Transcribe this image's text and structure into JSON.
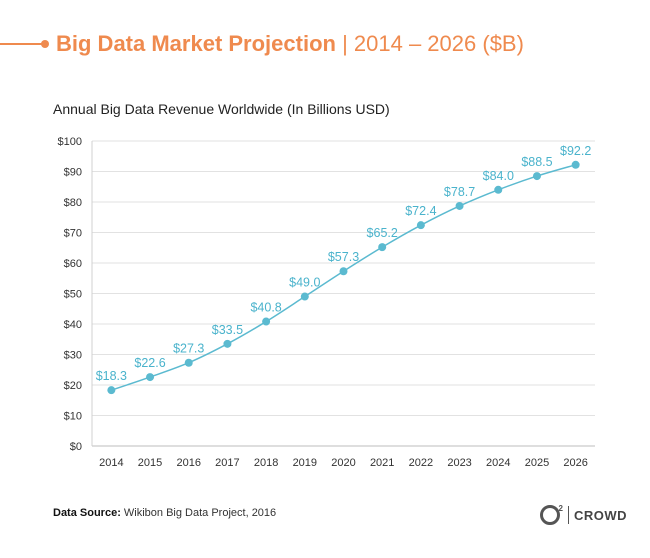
{
  "header": {
    "title_main": "Big Data Market Projection",
    "title_sep": " | ",
    "title_sub": "2014 – 2026 ($B)"
  },
  "chart_data": {
    "type": "line",
    "title": "Annual Big Data Revenue Worldwide (In Billions USD)",
    "xlabel": "",
    "ylabel": "",
    "categories": [
      "2014",
      "2015",
      "2016",
      "2017",
      "2018",
      "2019",
      "2020",
      "2021",
      "2022",
      "2023",
      "2024",
      "2025",
      "2026"
    ],
    "values": [
      18.3,
      22.6,
      27.3,
      33.5,
      40.8,
      49.0,
      57.3,
      65.2,
      72.4,
      78.7,
      84.0,
      88.5,
      92.2
    ],
    "data_labels": [
      "$18.3",
      "$22.6",
      "$27.3",
      "$33.5",
      "$40.8",
      "$49.0",
      "$57.3",
      "$65.2",
      "$72.4",
      "$78.7",
      "$84.0",
      "$88.5",
      "$92.2"
    ],
    "ylim": [
      0,
      100
    ],
    "yticks": [
      0,
      10,
      20,
      30,
      40,
      50,
      60,
      70,
      80,
      90,
      100
    ],
    "ytick_labels": [
      "$0",
      "$10",
      "$20",
      "$30",
      "$40",
      "$50",
      "$60",
      "$70",
      "$80",
      "$90",
      "$100"
    ],
    "grid": true,
    "line_color": "#5bbad0",
    "label_color": "#4ab3cc"
  },
  "footer": {
    "source_label": "Data Source:",
    "source_text": " Wikibon Big Data Project, 2016"
  },
  "logo": {
    "superscript": "2",
    "text": "CROWD"
  }
}
